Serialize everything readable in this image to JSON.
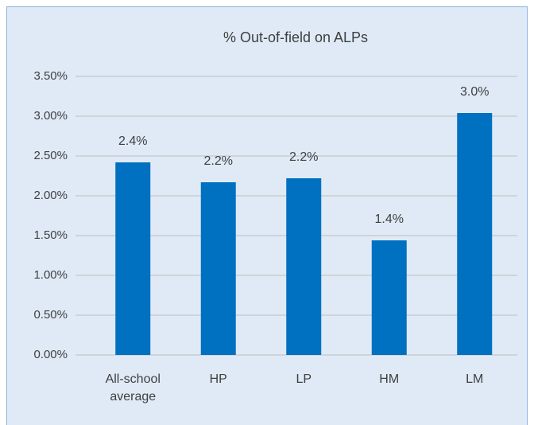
{
  "chart_data": {
    "type": "bar",
    "title": "% Out-of-field on ALPs",
    "categories": [
      "All-school average",
      "HP",
      "LP",
      "HM",
      "LM"
    ],
    "values": [
      2.42,
      2.17,
      2.22,
      1.44,
      3.04
    ],
    "value_labels": [
      "2.4%",
      "2.2%",
      "2.2%",
      "1.4%",
      "3.0%"
    ],
    "color": "#0070c0",
    "ylim": [
      0,
      3.5
    ],
    "yticks": [
      {
        "value": 0,
        "label": "0.00%"
      },
      {
        "value": 0.5,
        "label": "0.50%"
      },
      {
        "value": 1,
        "label": "1.00%"
      },
      {
        "value": 1.5,
        "label": "1.50%"
      },
      {
        "value": 2,
        "label": "2.00%"
      },
      {
        "value": 2.5,
        "label": "2.50%"
      },
      {
        "value": 3,
        "label": "3.00%"
      },
      {
        "value": 3.5,
        "label": "3.50%"
      }
    ],
    "grid": true
  }
}
